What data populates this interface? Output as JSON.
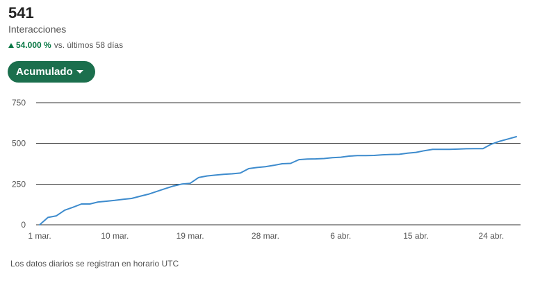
{
  "summary": {
    "value": "541",
    "label": "Interacciones",
    "change_pct": "54.000 %",
    "change_text": "vs. últimos 58 días"
  },
  "dropdown": {
    "label": "Acumulado"
  },
  "footnote": "Los datos diarios se registran en horario UTC",
  "colors": {
    "line": "#3d8bcd",
    "accent": "#1b6f4d",
    "positive": "#057642",
    "grid": "#333333"
  },
  "icons": {
    "change": "triangle-up-icon",
    "dropdown": "caret-down-icon"
  },
  "chart_data": {
    "type": "line",
    "ylim": [
      0,
      750
    ],
    "y_ticks": [
      0,
      250,
      500,
      750
    ],
    "y_tick_labels": [
      "0",
      "250",
      "500",
      "750"
    ],
    "x_tick_labels": [
      "1 mar.",
      "10 mar.",
      "19 mar.",
      "28 mar.",
      "6 abr.",
      "15 abr.",
      "24 abr."
    ],
    "x_tick_index": [
      0,
      9,
      18,
      27,
      36,
      45,
      54
    ],
    "x_count": 58,
    "grid": true,
    "series": [
      {
        "values": [
          0,
          45,
          55,
          90,
          108,
          128,
          128,
          140,
          145,
          150,
          157,
          162,
          175,
          188,
          205,
          222,
          238,
          250,
          255,
          290,
          300,
          305,
          310,
          313,
          318,
          345,
          352,
          357,
          365,
          375,
          377,
          400,
          404,
          405,
          407,
          412,
          415,
          422,
          425,
          425,
          426,
          430,
          432,
          433,
          440,
          445,
          455,
          463,
          463,
          463,
          465,
          467,
          468,
          468,
          495,
          513,
          527,
          541
        ]
      }
    ]
  }
}
